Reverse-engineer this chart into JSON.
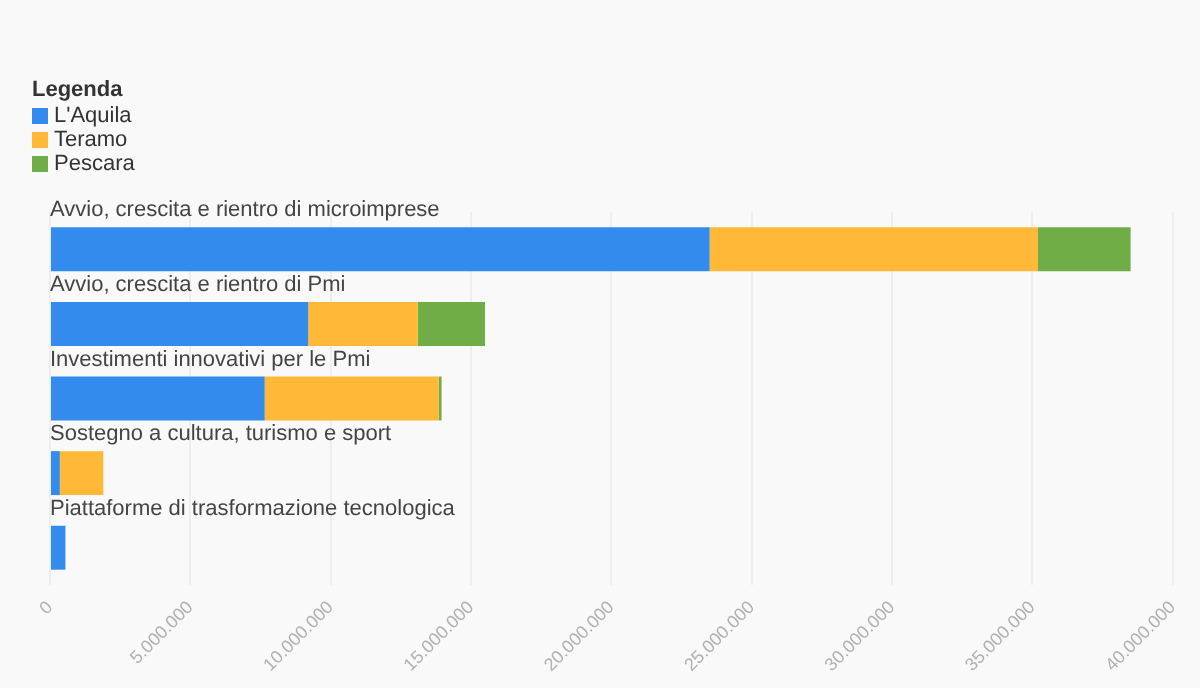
{
  "chart_data": {
    "type": "bar",
    "orientation": "horizontal",
    "stacked": true,
    "legend_title": "Legenda",
    "legend": "top left",
    "grid": "x",
    "categories": [
      "Avvio, crescita e rientro di microimprese",
      "Avvio, crescita e rientro di Pmi",
      "Investimenti innovativi per le Pmi",
      "Sostegno a cultura, turismo e sport",
      "Piattaforme di trasformazione tecnologica"
    ],
    "series": [
      {
        "name": "L'Aquila",
        "color": "#338ced",
        "values": [
          23500000,
          9200000,
          7650000,
          350000,
          550000
        ]
      },
      {
        "name": "Teramo",
        "color": "#ffb838",
        "values": [
          11700000,
          3900000,
          6200000,
          1550000,
          0
        ]
      },
      {
        "name": "Pescara",
        "color": "#70ad47",
        "values": [
          3300000,
          2400000,
          100000,
          0,
          0
        ]
      }
    ],
    "xlim": [
      0,
      40000000
    ],
    "xticks": [
      0,
      {
        "value": 5000000,
        "label": "5.000.000"
      },
      {
        "value": 10000000,
        "label": "10.000.000"
      },
      {
        "value": 15000000,
        "label": "15.000.000"
      },
      {
        "value": 20000000,
        "label": "20.000.000"
      },
      {
        "value": 25000000,
        "label": "25.000.000"
      },
      {
        "value": 30000000,
        "label": "30.000.000"
      },
      {
        "value": 35000000,
        "label": "35.000.000"
      },
      {
        "value": 40000000,
        "label": "40.000.000"
      }
    ]
  }
}
